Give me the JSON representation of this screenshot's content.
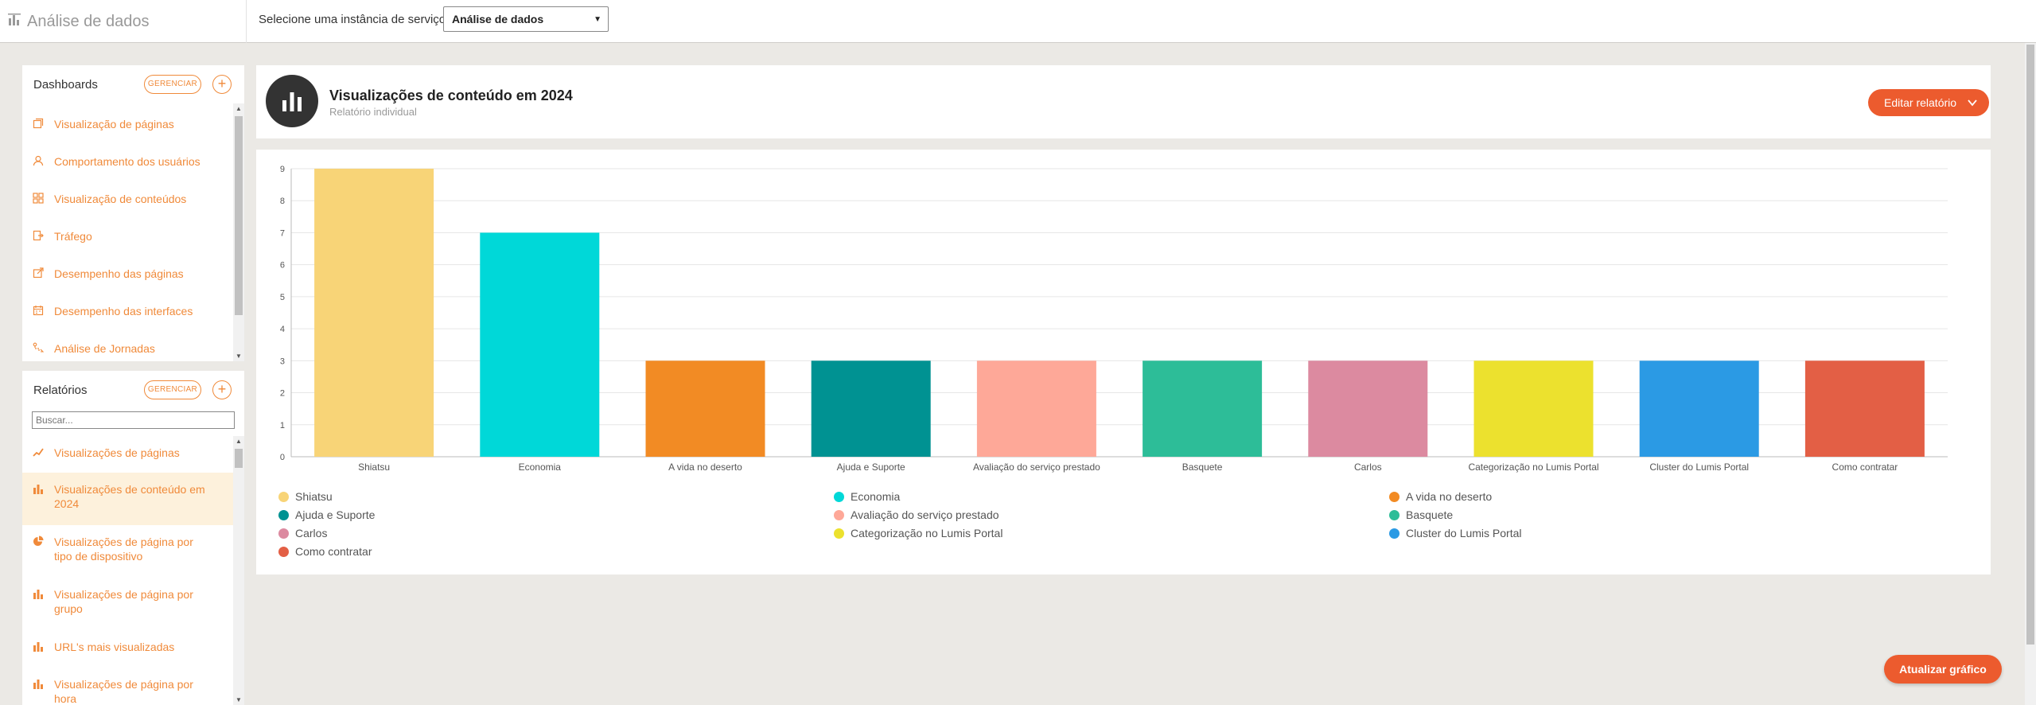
{
  "header": {
    "app_title": "Análise de dados",
    "instance_label": "Selecione uma instância de serviço:",
    "instance_selected": "Análise de dados"
  },
  "dashboards": {
    "title": "Dashboards",
    "manage_label": "GERENCIAR",
    "add_label": "+",
    "items": [
      {
        "label": "Visualização de páginas",
        "icon": "pages-icon"
      },
      {
        "label": "Comportamento dos usuários",
        "icon": "user-icon"
      },
      {
        "label": "Visualização de conteúdos",
        "icon": "grid-icon"
      },
      {
        "label": "Tráfego",
        "icon": "traffic-icon"
      },
      {
        "label": "Desempenho das páginas",
        "icon": "external-icon"
      },
      {
        "label": "Desempenho das interfaces",
        "icon": "calendar-icon"
      },
      {
        "label": "Análise de Jornadas",
        "icon": "journey-icon"
      }
    ]
  },
  "reports": {
    "title": "Relatórios",
    "manage_label": "GERENCIAR",
    "add_label": "+",
    "search_placeholder": "Buscar...",
    "items": [
      {
        "label": "Visualizações de páginas",
        "icon": "line-chart-icon"
      },
      {
        "label": "Visualizações de conteúdo em 2024",
        "icon": "bar-chart-icon",
        "active": true
      },
      {
        "label": "Visualizações de página por tipo de dispositivo",
        "icon": "pie-chart-icon"
      },
      {
        "label": "Visualizações de página por grupo",
        "icon": "bar-chart-icon"
      },
      {
        "label": "URL's mais visualizadas",
        "icon": "bar-chart-icon"
      },
      {
        "label": "Visualizações de página por hora",
        "icon": "bar-chart-icon"
      }
    ]
  },
  "report": {
    "title": "Visualizações de conteúdo em 2024",
    "subtitle": "Relatório individual",
    "edit_label": "Editar relatório"
  },
  "update_label": "Atualizar gráfico",
  "chart_data": {
    "type": "bar",
    "categories": [
      "Shiatsu",
      "Economia",
      "A vida no deserto",
      "Ajuda e Suporte",
      "Avaliação do serviço prestado",
      "Basquete",
      "Carlos",
      "Categorização no Lumis Portal",
      "Cluster do Lumis Portal",
      "Como contratar"
    ],
    "values": [
      9,
      7,
      3,
      3,
      3,
      3,
      3,
      3,
      3,
      3
    ],
    "colors": [
      "#f8d477",
      "#00d8d8",
      "#f28b24",
      "#009292",
      "#fea898",
      "#2dbd98",
      "#dc8aa0",
      "#ece12e",
      "#2b9ae4",
      "#e35f45"
    ],
    "ylim": [
      0,
      9
    ],
    "yticks": [
      "0",
      "1",
      "2",
      "3",
      "4",
      "5",
      "6",
      "7",
      "8",
      "9"
    ],
    "title": "",
    "xlabel": "",
    "ylabel": "",
    "grid": true,
    "legend": "bottom"
  }
}
